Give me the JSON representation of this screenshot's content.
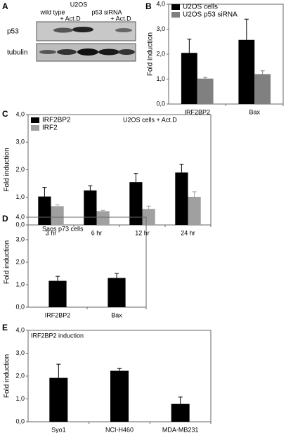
{
  "blot": {
    "panel": "A",
    "cell_line": "U2OS",
    "lanes": [
      "wild type",
      "+ Act.D",
      "p53 siRNA",
      "+ Act.D"
    ],
    "rows": [
      "p53",
      "tubulin"
    ]
  },
  "chart_data": [
    {
      "type": "bar",
      "panel": "B",
      "ylabel": "Fold induction",
      "categories": [
        "IRF2BP2",
        "Bax"
      ],
      "series": [
        {
          "name": "U2OS cells",
          "color": "#000000",
          "values": [
            2.05,
            2.57
          ],
          "errors": [
            0.55,
            0.83
          ]
        },
        {
          "name": "U2OS p53 siRNA",
          "color": "#808080",
          "values": [
            1.02,
            1.2
          ],
          "errors": [
            0.05,
            0.13
          ]
        }
      ],
      "ylim": [
        0,
        4
      ],
      "yticks": [
        {
          "value": 0,
          "label": "0,0"
        },
        {
          "value": 1,
          "label": "1,0"
        },
        {
          "value": 2,
          "label": "2,0"
        },
        {
          "value": 3,
          "label": "3,0"
        },
        {
          "value": 4,
          "label": "4,0"
        }
      ]
    },
    {
      "type": "bar",
      "panel": "C",
      "title": "U2OS cells + Act.D",
      "ylabel": "Fold induction",
      "categories": [
        "3 hr",
        "6 hr",
        "12 hr",
        "24 hr"
      ],
      "series": [
        {
          "name": "IRF2BP2",
          "color": "#000000",
          "values": [
            1.03,
            1.25,
            1.55,
            1.9
          ],
          "errors": [
            0.33,
            0.17,
            0.32,
            0.3
          ]
        },
        {
          "name": "IRF2",
          "color": "#a0a0a0",
          "values": [
            0.68,
            0.5,
            0.58,
            1.02
          ],
          "errors": [
            0.05,
            0.03,
            0.1,
            0.18
          ]
        }
      ],
      "ylim": [
        0,
        4
      ],
      "yticks": [
        {
          "value": 0,
          "label": "0,0"
        },
        {
          "value": 1,
          "label": "1,0"
        },
        {
          "value": 2,
          "label": "2,0"
        },
        {
          "value": 3,
          "label": "3,0"
        },
        {
          "value": 4,
          "label": "4,0"
        }
      ]
    },
    {
      "type": "bar",
      "panel": "D",
      "title": "Saos p73 cells",
      "ylabel": "Fold induction",
      "categories": [
        "IRF2BP2",
        "Bax"
      ],
      "series": [
        {
          "color": "#000000",
          "values": [
            1.17,
            1.3
          ],
          "errors": [
            0.2,
            0.2
          ]
        }
      ],
      "ylim": [
        0,
        4
      ],
      "yticks": [
        {
          "value": 0,
          "label": "0,0"
        },
        {
          "value": 1,
          "label": "1,0"
        },
        {
          "value": 2,
          "label": "2,0"
        },
        {
          "value": 3,
          "label": "3,0"
        },
        {
          "value": 4,
          "label": "4,0"
        }
      ]
    },
    {
      "type": "bar",
      "panel": "E",
      "title": "IRF2BP2 induction",
      "ylabel": "Fold induction",
      "categories": [
        "Syo1",
        "NCI-H460",
        "MDA-MB231"
      ],
      "series": [
        {
          "color": "#000000",
          "values": [
            1.92,
            2.23,
            0.78
          ],
          "errors": [
            0.6,
            0.1,
            0.3
          ]
        }
      ],
      "ylim": [
        0,
        4
      ],
      "yticks": [
        {
          "value": 0,
          "label": "0,0"
        },
        {
          "value": 1,
          "label": "1,0"
        },
        {
          "value": 2,
          "label": "2,0"
        },
        {
          "value": 3,
          "label": "3,0"
        },
        {
          "value": 4,
          "label": "4,0"
        }
      ]
    }
  ]
}
